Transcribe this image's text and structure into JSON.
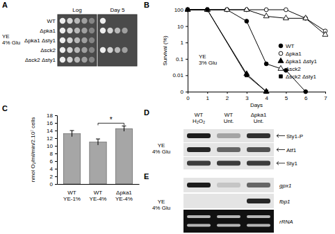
{
  "chart_data": [
    {
      "type": "line",
      "title": "B",
      "x_label": "Days",
      "y_label": "Survival (%)",
      "annotation": "YE\n3% Glu",
      "log": "y",
      "legend": "right",
      "xlim": [
        0,
        7
      ],
      "xticks": [
        0,
        1,
        2,
        3,
        4,
        5,
        6,
        7
      ],
      "ylim": [
        0.001,
        100
      ],
      "yticks": [
        {
          "value": 0.001,
          "label": "0"
        },
        0.01,
        0.1,
        1,
        10,
        100
      ],
      "series": [
        {
          "name": "WT",
          "color": "#000000",
          "marker": "circle",
          "x": [
            0,
            1,
            2,
            3,
            4,
            5,
            6
          ],
          "values": [
            100,
            100,
            100,
            20,
            0.05,
            0.02,
            0.001
          ]
        },
        {
          "name": "Δpka1",
          "color": "#000000",
          "marker": "circle-open",
          "x": [
            0,
            1,
            2,
            3,
            4,
            5,
            6,
            7
          ],
          "values": [
            100,
            100,
            100,
            100,
            100,
            100,
            30,
            5
          ]
        },
        {
          "name": "Δpka1 Δsty1",
          "color": "#000000",
          "marker": "triangle",
          "x": [
            0,
            1,
            3,
            4
          ],
          "values": [
            100,
            100,
            0.012,
            0.001
          ]
        },
        {
          "name": "Δsck2",
          "color": "#000000",
          "marker": "triangle-open",
          "x": [
            0,
            1,
            2,
            3,
            4,
            5,
            6,
            7
          ],
          "values": [
            100,
            100,
            100,
            100,
            40,
            30,
            30,
            3
          ]
        },
        {
          "name": "Δsck2 Δsty1",
          "color": "#000000",
          "marker": "square",
          "x": [
            0,
            1,
            3,
            4
          ],
          "values": [
            100,
            100,
            0.01,
            0.001
          ]
        }
      ]
    },
    {
      "type": "bar",
      "title": "C",
      "y_label": "nmol O₂/ml/min/2.10⁷ cells",
      "annotation": "*",
      "categories": [
        "WT\nYE-1%",
        "WT\nYE-4%",
        "Δpka1\nYE-4%"
      ],
      "values": [
        13.2,
        11,
        14.5
      ],
      "errors": [
        0.8,
        0.8,
        0.7
      ],
      "color": "#a6a6a6",
      "ylim": [
        0,
        18
      ],
      "yticks": [
        0,
        2,
        4,
        6,
        8,
        10,
        12,
        14,
        16,
        18
      ]
    }
  ],
  "panels": {
    "A": {
      "label": "A",
      "condition": "YE\n4% Glu",
      "columns": [
        "Log",
        "Day 5"
      ],
      "rows": [
        {
          "name": "WT",
          "log_spots": 5,
          "day5_spots": 1
        },
        {
          "name": "Δpka1",
          "log_spots": 5,
          "day5_spots": 4
        },
        {
          "name": "Δpka1 Δsty1",
          "log_spots": 5,
          "day5_spots": 0
        },
        {
          "name": "Δsck2",
          "log_spots": 5,
          "day5_spots": 4
        },
        {
          "name": "Δsck2 Δsty1",
          "log_spots": 5,
          "day5_spots": 0
        }
      ]
    },
    "D": {
      "label": "D",
      "condition": "YE\n4% Glu",
      "columns": [
        "WT\nH₂O₂",
        "WT\nUnt.",
        "Δpka1\nUnt."
      ],
      "rows": [
        {
          "name": "Sty1-P",
          "intensity": [
            0.95,
            0.3,
            0.85
          ]
        },
        {
          "name": "Atf1",
          "intensity": [
            0.9,
            0.6,
            0.7
          ]
        },
        {
          "name": "Sty1",
          "intensity": [
            0.8,
            0.8,
            0.8
          ]
        }
      ]
    },
    "E": {
      "label": "E",
      "condition": "YE\n4% Glu",
      "rows": [
        {
          "name": "gpx1",
          "intensity": [
            0.95,
            0.15,
            0.6
          ]
        },
        {
          "name": "fbp1",
          "intensity": [
            0,
            0,
            0.9
          ]
        },
        {
          "name": "rRNA",
          "intensity": [
            0.75,
            0.75,
            0.75
          ]
        }
      ]
    }
  }
}
